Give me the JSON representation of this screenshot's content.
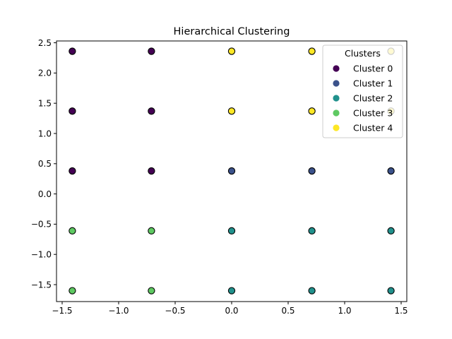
{
  "chart_data": {
    "type": "scatter",
    "title": "Hierarchical Clustering",
    "xlabel": "",
    "ylabel": "",
    "xlim": [
      -1.55,
      1.55
    ],
    "ylim": [
      -1.78,
      2.53
    ],
    "x_ticks": [
      -1.5,
      -1.0,
      -0.5,
      0.0,
      0.5,
      1.0,
      1.5
    ],
    "x_tick_labels": [
      "−1.5",
      "−1.0",
      "−0.5",
      "0.0",
      "0.5",
      "1.0",
      "1.5"
    ],
    "y_ticks": [
      -1.5,
      -1.0,
      -0.5,
      0.0,
      0.5,
      1.0,
      1.5,
      2.0,
      2.5
    ],
    "y_tick_labels": [
      "−1.5",
      "−1.0",
      "−0.5",
      "0.0",
      "0.5",
      "1.0",
      "1.5",
      "2.0",
      "2.5"
    ],
    "grid": false,
    "legend": {
      "title": "Clusters",
      "placement": "top-right"
    },
    "series": [
      {
        "name": "Cluster 0",
        "color": "#440154",
        "points": [
          [
            -1.41,
            2.36
          ],
          [
            -0.71,
            2.36
          ],
          [
            -1.41,
            1.37
          ],
          [
            -0.71,
            1.37
          ],
          [
            -1.41,
            0.38
          ],
          [
            -0.71,
            0.38
          ]
        ]
      },
      {
        "name": "Cluster 1",
        "color": "#3b528b",
        "points": [
          [
            0.0,
            0.38
          ],
          [
            0.71,
            0.38
          ],
          [
            1.41,
            0.38
          ]
        ]
      },
      {
        "name": "Cluster 2",
        "color": "#21918c",
        "points": [
          [
            0.0,
            -0.61
          ],
          [
            0.71,
            -0.61
          ],
          [
            1.41,
            -0.61
          ],
          [
            0.0,
            -1.6
          ],
          [
            0.71,
            -1.6
          ],
          [
            1.41,
            -1.6
          ]
        ]
      },
      {
        "name": "Cluster 3",
        "color": "#5ec962",
        "points": [
          [
            -1.41,
            -0.61
          ],
          [
            -0.71,
            -0.61
          ],
          [
            -1.41,
            -1.6
          ],
          [
            -0.71,
            -1.6
          ]
        ]
      },
      {
        "name": "Cluster 4",
        "color": "#fde725",
        "points": [
          [
            0.0,
            2.36
          ],
          [
            0.71,
            2.36
          ],
          [
            1.41,
            2.36
          ],
          [
            0.0,
            1.37
          ],
          [
            0.71,
            1.37
          ],
          [
            1.41,
            1.37
          ]
        ]
      }
    ]
  }
}
